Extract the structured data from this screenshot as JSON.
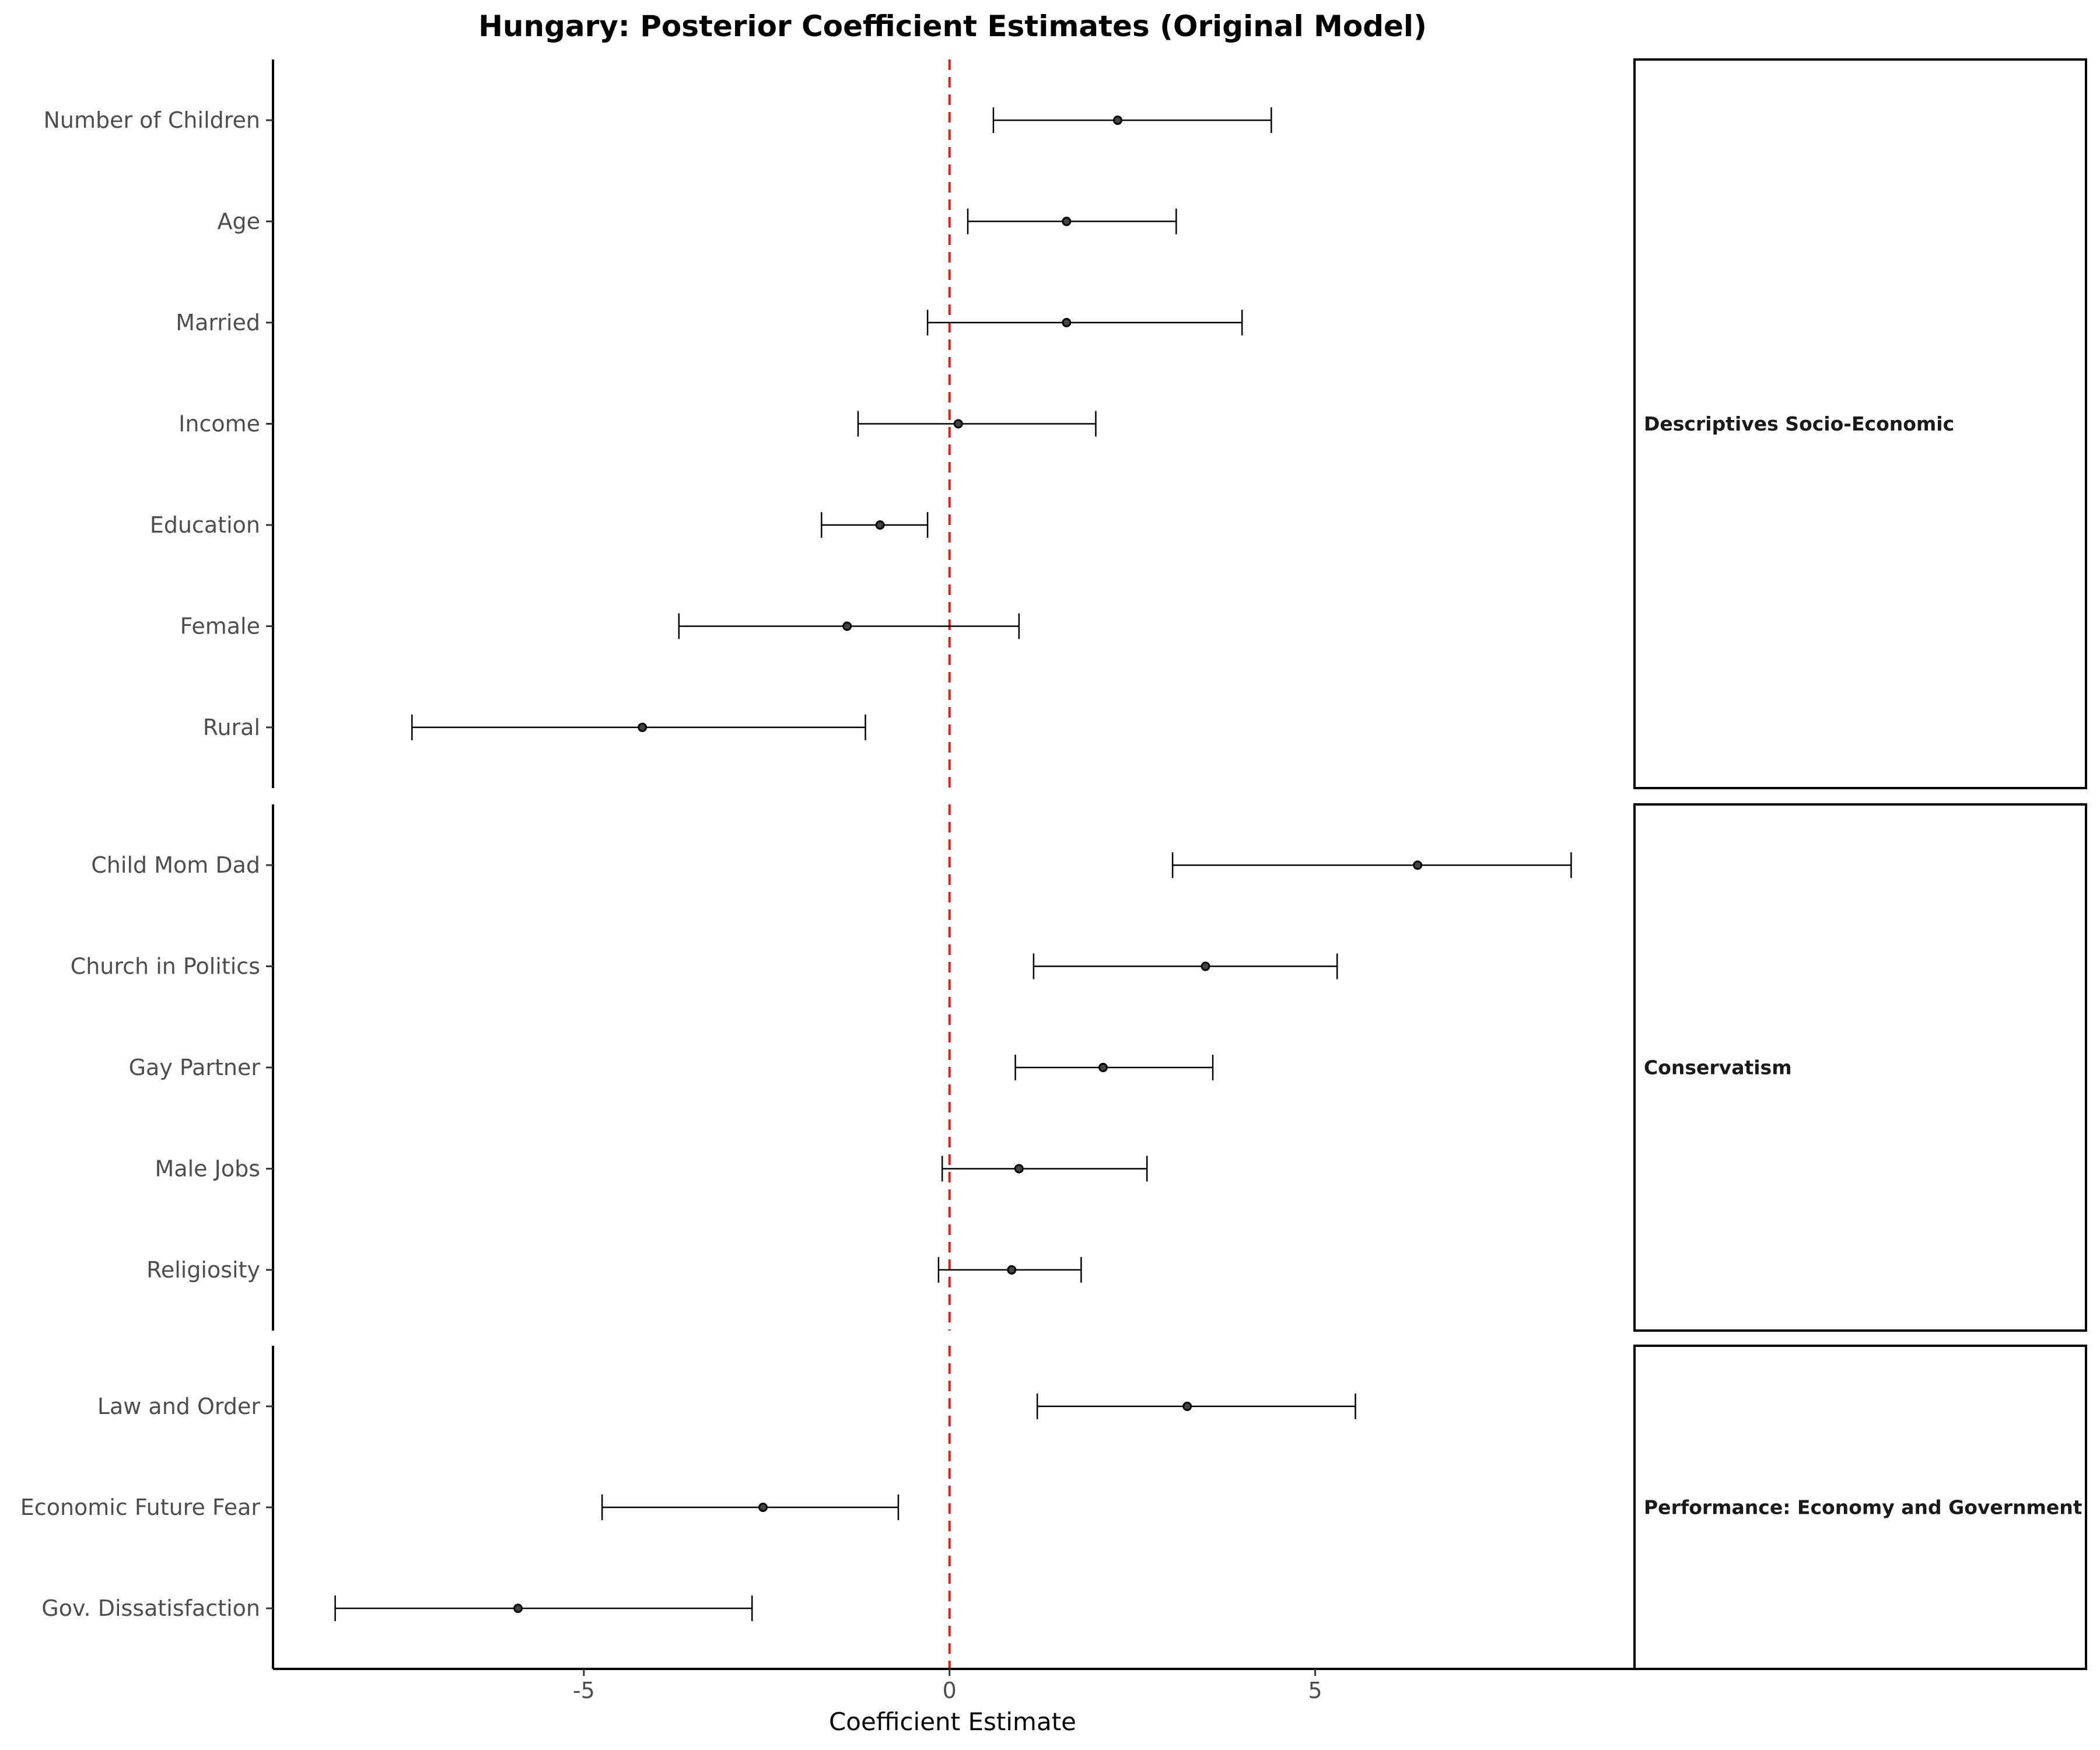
{
  "chart_data": {
    "type": "scatter",
    "title": "Hungary: Posterior Coefficient Estimates (Original Model)",
    "xlabel": "Coefficient Estimate",
    "xlim": [
      -9.25,
      9.35
    ],
    "x_ticks": [
      -5,
      0,
      5
    ],
    "x_tick_labels": [
      "-5",
      "0",
      "5"
    ],
    "reference_line": {
      "x": 0,
      "color": "#e41a1c",
      "style": "dashed"
    },
    "grid": false,
    "colors": {
      "points": "#000000",
      "errorbars": "#000000",
      "reference": "#e41a1c"
    },
    "panels": [
      {
        "label": "Descriptives Socio-Economic",
        "items": [
          {
            "name": "Number of Children",
            "estimate": 2.3,
            "lower": 0.6,
            "upper": 4.4
          },
          {
            "name": "Age",
            "estimate": 1.6,
            "lower": 0.25,
            "upper": 3.1
          },
          {
            "name": "Married",
            "estimate": 1.6,
            "lower": -0.3,
            "upper": 4.0
          },
          {
            "name": "Income",
            "estimate": 0.12,
            "lower": -1.25,
            "upper": 2.0
          },
          {
            "name": "Education",
            "estimate": -0.95,
            "lower": -1.75,
            "upper": -0.3
          },
          {
            "name": "Female",
            "estimate": -1.4,
            "lower": -3.7,
            "upper": 0.95
          },
          {
            "name": "Rural",
            "estimate": -4.2,
            "lower": -7.35,
            "upper": -1.15
          }
        ]
      },
      {
        "label": "Conservatism",
        "items": [
          {
            "name": "Child Mom Dad",
            "estimate": 6.4,
            "lower": 3.05,
            "upper": 8.5
          },
          {
            "name": "Church in Politics",
            "estimate": 3.5,
            "lower": 1.15,
            "upper": 5.3
          },
          {
            "name": "Gay Partner",
            "estimate": 2.1,
            "lower": 0.9,
            "upper": 3.6
          },
          {
            "name": "Male Jobs",
            "estimate": 0.95,
            "lower": -0.1,
            "upper": 2.7
          },
          {
            "name": "Religiosity",
            "estimate": 0.85,
            "lower": -0.15,
            "upper": 1.8
          }
        ]
      },
      {
        "label": "Performance: Economy and Government",
        "items": [
          {
            "name": "Law and Order",
            "estimate": 3.25,
            "lower": 1.2,
            "upper": 5.55
          },
          {
            "name": "Economic Future Fear",
            "estimate": -2.55,
            "lower": -4.75,
            "upper": -0.7
          },
          {
            "name": "Gov. Dissatisfaction",
            "estimate": -5.9,
            "lower": -8.4,
            "upper": -2.7
          }
        ]
      }
    ]
  }
}
